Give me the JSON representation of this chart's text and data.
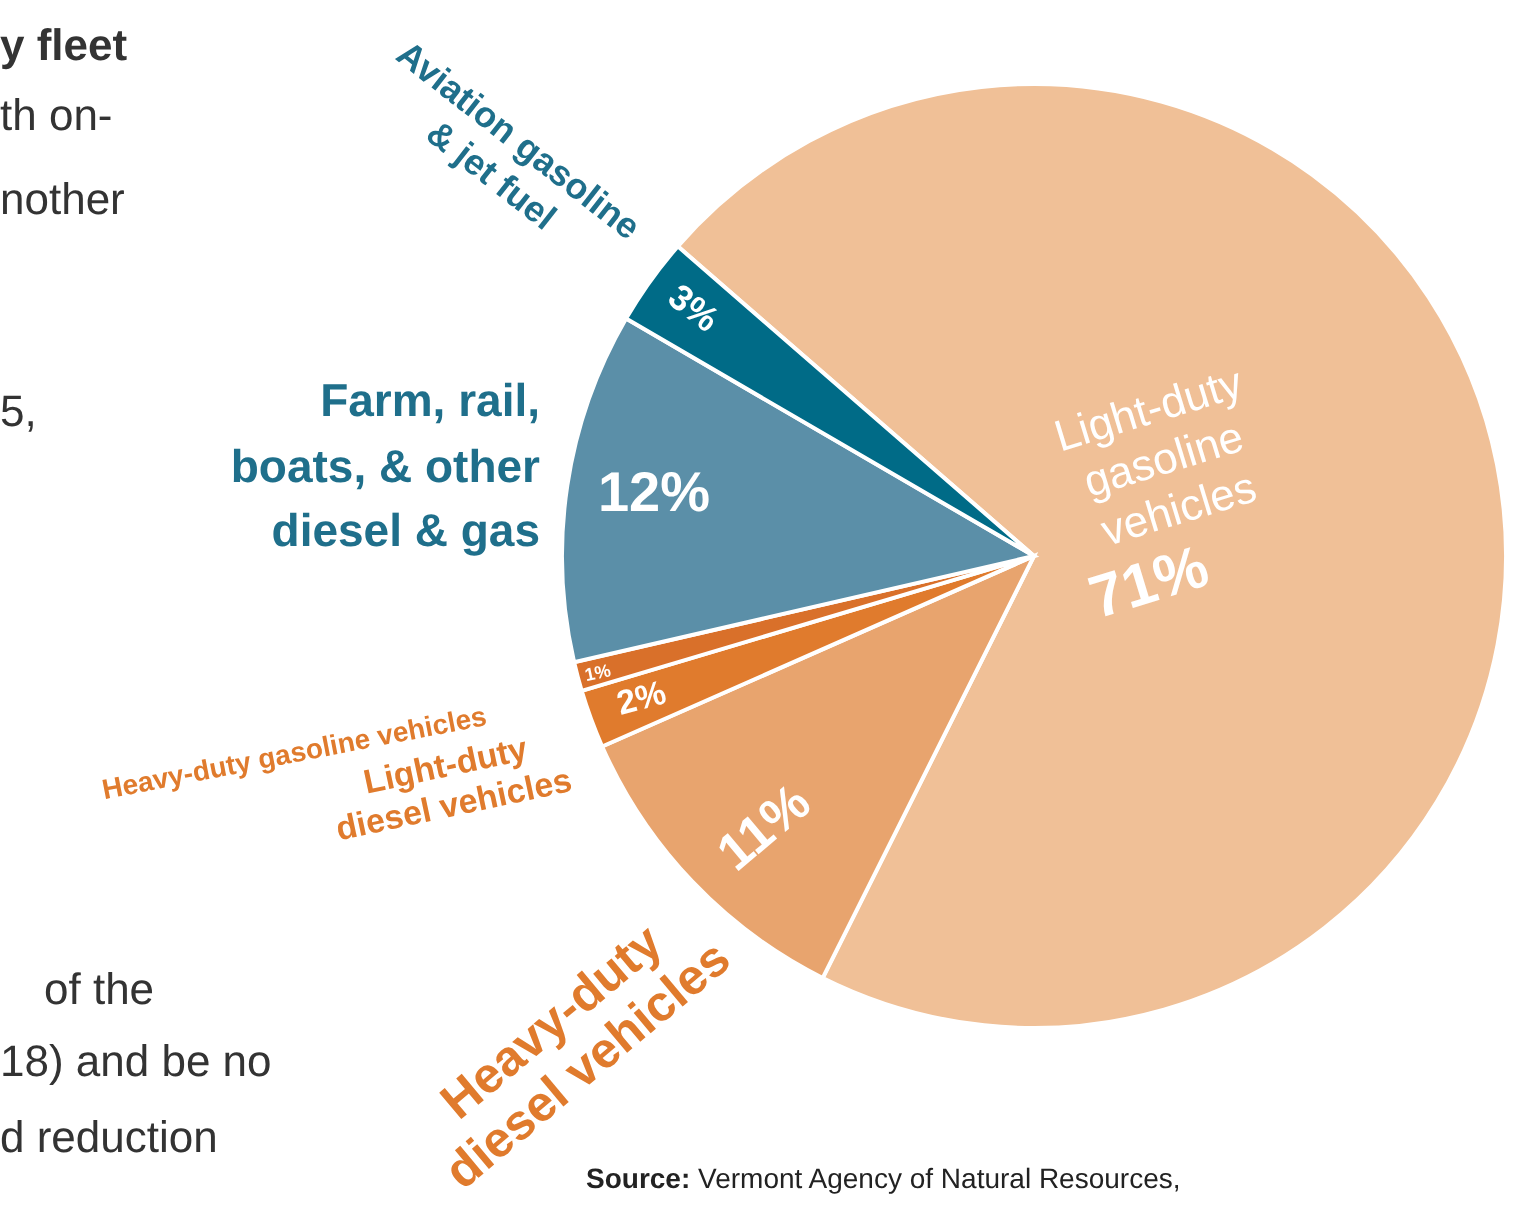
{
  "chart_data": {
    "type": "pie",
    "categories": [
      "Light-duty gasoline vehicles",
      "Heavy-duty diesel vehicles",
      "Light-duty diesel vehicles",
      "Heavy-duty gasoline vehicles",
      "Farm, rail, boats, & other diesel & gas",
      "Aviation gasoline & jet fuel"
    ],
    "values": [
      71,
      11,
      2,
      1,
      12,
      3
    ],
    "colors": [
      "#f0c097",
      "#e8a46e",
      "#e07b2d",
      "#d9702a",
      "#5b8fa8",
      "#006b87"
    ],
    "value_labels": [
      "71%",
      "11%",
      "2%",
      "1%",
      "12%",
      "3%"
    ],
    "annotations": [
      "y fleet",
      "th on-",
      "nother",
      "5,",
      "of the",
      "18) and be no",
      "d reduction",
      "Source: Vermont Agency of Natural Resources,"
    ]
  }
}
